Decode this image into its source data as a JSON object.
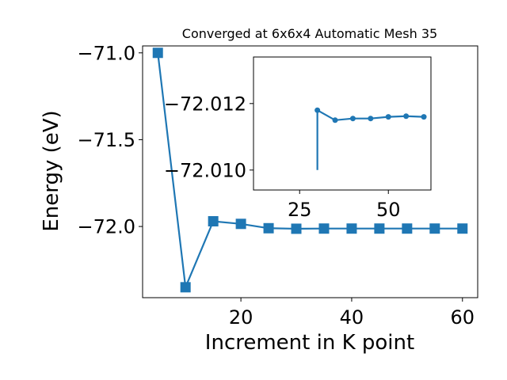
{
  "chart_data": [
    {
      "type": "line",
      "title": "Converged at 6x6x4 Automatic Mesh 35",
      "xlabel": "Increment in K point",
      "ylabel": "Energy (eV)",
      "xlim": [
        2.25,
        62.75
      ],
      "ylim": [
        -72.41,
        -70.96
      ],
      "xticks": [
        20,
        40,
        60
      ],
      "yticks": [
        -71.0,
        -71.5,
        -72.0
      ],
      "ytick_labels": [
        "−71.0",
        "−71.5",
        "−72.0"
      ],
      "grid": false,
      "marker": "square",
      "color": "#1f77b4",
      "series": [
        {
          "x": [
            5,
            10,
            15,
            20,
            25,
            30,
            35,
            40,
            45,
            50,
            55,
            60
          ],
          "y": [
            -71.0,
            -72.35,
            -71.97,
            -71.985,
            -72.01,
            -72.013,
            -72.012,
            -72.012,
            -72.012,
            -72.012,
            -72.012,
            -72.012
          ]
        }
      ]
    },
    {
      "type": "line",
      "inset": true,
      "title": "",
      "xlabel": "",
      "ylabel": "",
      "xlim": [
        12,
        62
      ],
      "ylim": [
        -72.0094,
        -72.0134
      ],
      "xticks": [
        25,
        50
      ],
      "yticks": [
        -72.012,
        -72.01
      ],
      "ytick_labels": [
        "−72.012",
        "−72.010"
      ],
      "grid": false,
      "marker": "circle",
      "color": "#1f77b4",
      "series": [
        {
          "x": [
            30,
            35,
            40,
            45,
            50,
            55,
            60
          ],
          "y": [
            -72.0118,
            -72.0115,
            -72.01155,
            -72.01155,
            -72.0116,
            -72.01162,
            -72.0116
          ]
        },
        {
          "x": [
            30,
            30
          ],
          "y": [
            -72.0118,
            -72.01
          ]
        }
      ]
    }
  ]
}
